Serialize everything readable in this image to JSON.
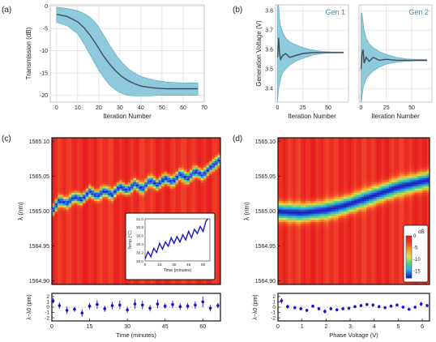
{
  "panel_labels": {
    "a": "(a)",
    "b": "(b)",
    "c": "(c)",
    "d": "(d)"
  },
  "colors": {
    "band": "#8ec9dc",
    "band_edge": "#5aa8c4",
    "mean_line": "#3d4f57",
    "grid": "#d8d8d8",
    "marker": "#1515c8",
    "frame": "#111111",
    "colorbar_stops": [
      "#2020c0",
      "#2aa8e6",
      "#4fd18a",
      "#d7e34a",
      "#f7a12c",
      "#f0452a",
      "#e61e1e"
    ]
  },
  "chart_data": [
    {
      "id": "a",
      "type": "area",
      "title": "",
      "xlabel": "Iteration Number",
      "ylabel": "Transmission (dB)",
      "xlim": [
        -3,
        70
      ],
      "ylim": [
        -21.5,
        0.3
      ],
      "xticks": [
        0,
        10,
        20,
        30,
        40,
        50,
        60,
        70
      ],
      "yticks": [
        0,
        -5,
        -10,
        -15,
        -20
      ],
      "grid": true,
      "x": [
        0,
        5,
        10,
        13,
        16,
        19,
        22,
        25,
        28,
        31,
        34,
        37,
        40,
        44,
        48,
        52,
        56,
        60,
        64,
        67
      ],
      "mean": [
        -1.8,
        -2.3,
        -3.5,
        -4.8,
        -6.6,
        -8.7,
        -11.0,
        -12.9,
        -14.5,
        -15.8,
        -16.7,
        -17.4,
        -17.9,
        -18.2,
        -18.4,
        -18.5,
        -18.5,
        -18.5,
        -18.5,
        -18.5
      ],
      "upper": [
        -0.2,
        -0.5,
        -1.0,
        -1.6,
        -2.5,
        -4.0,
        -6.2,
        -8.6,
        -10.8,
        -12.6,
        -14.0,
        -15.0,
        -15.7,
        -16.3,
        -16.7,
        -17.0,
        -17.1,
        -17.2,
        -17.2,
        -17.2
      ],
      "lower": [
        -3.6,
        -4.4,
        -6.2,
        -8.5,
        -11.0,
        -13.6,
        -15.8,
        -17.6,
        -18.8,
        -19.6,
        -20.0,
        -20.1,
        -20.1,
        -20.1,
        -20.0,
        -20.0,
        -20.0,
        -20.0,
        -20.0,
        -20.0
      ]
    },
    {
      "id": "b1",
      "type": "area",
      "title": "Gen 1",
      "xlabel": "Iteration Number",
      "ylabel": "Generation Voltage (V)",
      "xlim": [
        -2,
        70
      ],
      "ylim": [
        3.33,
        3.83
      ],
      "xticks": [
        0,
        25,
        50
      ],
      "yticks": [
        3.4,
        3.5,
        3.6,
        3.7,
        3.8
      ],
      "grid": true,
      "x": [
        0,
        1,
        2,
        3,
        5,
        8,
        12,
        18,
        25,
        35,
        45,
        55,
        65
      ],
      "mean": [
        3.56,
        3.66,
        3.58,
        3.55,
        3.57,
        3.58,
        3.56,
        3.57,
        3.58,
        3.585,
        3.585,
        3.585,
        3.585
      ],
      "upper": [
        3.83,
        3.83,
        3.76,
        3.72,
        3.69,
        3.66,
        3.64,
        3.625,
        3.61,
        3.597,
        3.59,
        3.588,
        3.588
      ],
      "lower": [
        3.33,
        3.4,
        3.42,
        3.45,
        3.48,
        3.5,
        3.52,
        3.54,
        3.555,
        3.572,
        3.58,
        3.582,
        3.582
      ]
    },
    {
      "id": "b2",
      "type": "area",
      "title": "Gen 2",
      "xlabel": "Iteration Number",
      "xlim": [
        -2,
        70
      ],
      "ylim": [
        3.33,
        3.83
      ],
      "xticks": [
        0,
        25,
        50
      ],
      "grid": true,
      "x": [
        0,
        1,
        2,
        3,
        5,
        8,
        12,
        18,
        25,
        35,
        45,
        55,
        65
      ],
      "mean": [
        3.5,
        3.58,
        3.6,
        3.53,
        3.56,
        3.54,
        3.56,
        3.545,
        3.55,
        3.545,
        3.545,
        3.545,
        3.545
      ],
      "upper": [
        3.78,
        3.79,
        3.74,
        3.7,
        3.66,
        3.63,
        3.61,
        3.59,
        3.575,
        3.56,
        3.552,
        3.55,
        3.55
      ],
      "lower": [
        3.32,
        3.36,
        3.4,
        3.42,
        3.45,
        3.47,
        3.49,
        3.51,
        3.525,
        3.535,
        3.54,
        3.542,
        3.542
      ]
    },
    {
      "id": "c",
      "type": "heatmap",
      "ylabel": "λ (nm)",
      "xlim": [
        0,
        67
      ],
      "ylim": [
        1564.895,
        1565.105
      ],
      "yticks": [
        1564.9,
        1564.95,
        1565.0,
        1565.05,
        1565.1
      ],
      "ytick_labels": [
        "1564.90",
        "1564.95",
        "1565.00",
        "1565.05",
        "1565.10"
      ],
      "resonance_x": [
        0,
        3,
        6,
        9,
        12,
        15,
        18,
        21,
        24,
        27,
        30,
        33,
        36,
        39,
        42,
        45,
        48,
        51,
        54,
        57,
        60,
        63,
        67
      ],
      "resonance_lambda": [
        1565.0,
        1565.016,
        1565.012,
        1565.021,
        1565.017,
        1565.029,
        1565.022,
        1565.03,
        1565.024,
        1565.036,
        1565.03,
        1565.04,
        1565.032,
        1565.045,
        1565.038,
        1565.048,
        1565.042,
        1565.054,
        1565.047,
        1565.058,
        1565.052,
        1565.063,
        1565.075
      ]
    },
    {
      "id": "c_inset",
      "type": "line",
      "xlabel": "Time (minutes)",
      "ylabel": "Temp (°C)",
      "xlim": [
        0,
        67
      ],
      "ylim": [
        30.0,
        31.0
      ],
      "xticks": [
        0,
        15,
        30,
        45,
        60
      ],
      "yticks": [
        30.0,
        30.2,
        30.4,
        30.6,
        30.8,
        31.0
      ],
      "ytick_labels": [
        "30.0",
        "30.2",
        "30.4",
        "30.6",
        "30.8",
        "31.0"
      ],
      "x": [
        0,
        3,
        6,
        9,
        12,
        15,
        18,
        21,
        24,
        27,
        30,
        33,
        36,
        39,
        42,
        45,
        48,
        51,
        54,
        57,
        60,
        63,
        65
      ],
      "y": [
        30.05,
        30.22,
        30.1,
        30.3,
        30.2,
        30.42,
        30.28,
        30.45,
        30.35,
        30.55,
        30.42,
        30.58,
        30.45,
        30.62,
        30.5,
        30.7,
        30.55,
        30.75,
        30.65,
        30.82,
        30.7,
        30.95,
        31.0
      ]
    },
    {
      "id": "c_residual",
      "type": "scatter",
      "xlabel": "Time (minutes)",
      "ylabel": "λ−λ0 (pm)",
      "xlim": [
        0,
        67
      ],
      "ylim": [
        -2.6,
        2.6
      ],
      "xticks": [
        0,
        15,
        30,
        45,
        60
      ],
      "yticks": [
        -2,
        -1,
        0,
        1,
        2
      ],
      "x": [
        0.5,
        3,
        6,
        9,
        12,
        15,
        18,
        21,
        24,
        27,
        30,
        33,
        36,
        39,
        42,
        45,
        48,
        51,
        54,
        57,
        60,
        63,
        66
      ],
      "y": [
        1.2,
        0.3,
        -0.6,
        -0.4,
        -1.1,
        0.2,
        0.5,
        -0.3,
        0.3,
        0.4,
        -0.5,
        0.6,
        0.4,
        -0.2,
        0.6,
        0.2,
        0.5,
        0.1,
        0.2,
        0.4,
        1.0,
        -0.2,
        0.3
      ],
      "err": [
        0.5,
        0.6,
        0.7,
        0.5,
        0.7,
        0.6,
        0.8,
        0.6,
        0.7,
        0.8,
        0.6,
        0.9,
        0.8,
        0.6,
        0.8,
        0.5,
        0.7,
        0.6,
        0.6,
        0.7,
        1.0,
        0.6,
        0.5
      ]
    },
    {
      "id": "d",
      "type": "heatmap",
      "ylabel": "λ (nm)",
      "xlim": [
        0,
        6.3
      ],
      "ylim": [
        1564.895,
        1565.105
      ],
      "yticks": [
        1564.9,
        1564.95,
        1565.0,
        1565.05,
        1565.1
      ],
      "ytick_labels": [
        "1564.90",
        "1564.95",
        "1565.00",
        "1565.05",
        "1565.10"
      ],
      "resonance_x": [
        0,
        0.5,
        1.0,
        1.5,
        2.0,
        2.5,
        3.0,
        3.5,
        4.0,
        4.5,
        5.0,
        5.5,
        6.0,
        6.3
      ],
      "resonance_lambda": [
        1565.0,
        1564.999,
        1564.998,
        1565.0,
        1565.002,
        1565.006,
        1565.011,
        1565.017,
        1565.023,
        1565.029,
        1565.035,
        1565.039,
        1565.043,
        1565.045
      ],
      "colorbar": {
        "label": "dB",
        "ticks": [
          "0",
          "-5",
          "-10",
          "-15"
        ],
        "range": [
          0,
          -18
        ]
      }
    },
    {
      "id": "d_residual",
      "type": "scatter",
      "xlabel": "Phase Voltage (V)",
      "ylabel": "λ−λ0 (pm)",
      "xlim": [
        0,
        6.3
      ],
      "ylim": [
        -2.6,
        2.6
      ],
      "xticks": [
        0,
        1,
        2,
        3,
        4,
        5,
        6
      ],
      "yticks": [
        -2,
        -1,
        0,
        1,
        2
      ],
      "x": [
        0.15,
        0.4,
        0.7,
        0.95,
        1.2,
        1.45,
        1.7,
        1.95,
        2.2,
        2.45,
        2.7,
        2.95,
        3.2,
        3.45,
        3.7,
        3.95,
        4.2,
        4.45,
        4.7,
        4.95,
        5.2,
        5.45,
        5.7,
        5.95,
        6.2
      ],
      "y": [
        1.2,
        0.1,
        -0.1,
        -0.3,
        -0.6,
        0.2,
        -0.3,
        -0.8,
        -0.3,
        -0.5,
        -0.3,
        -0.2,
        0.1,
        0.3,
        0.5,
        0.4,
        0.1,
        -0.1,
        0.2,
        0.4,
        0.0,
        -0.4,
        0.0,
        0.6,
        0.3
      ],
      "err": [
        0.5,
        0.4,
        0.3,
        0.3,
        0.3,
        0.3,
        0.3,
        0.4,
        0.3,
        0.3,
        0.3,
        0.3,
        0.3,
        0.3,
        0.3,
        0.3,
        0.3,
        0.3,
        0.3,
        0.3,
        0.3,
        0.3,
        0.3,
        0.4,
        0.3
      ]
    }
  ]
}
